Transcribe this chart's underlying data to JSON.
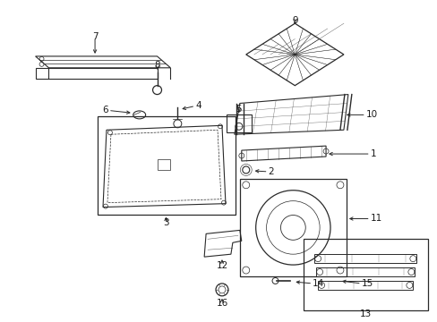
{
  "bg_color": "#ffffff",
  "fig_width": 4.89,
  "fig_height": 3.6,
  "dpi": 100,
  "line_color": "#2a2a2a",
  "text_color": "#1a1a1a",
  "font_size": 7.5
}
